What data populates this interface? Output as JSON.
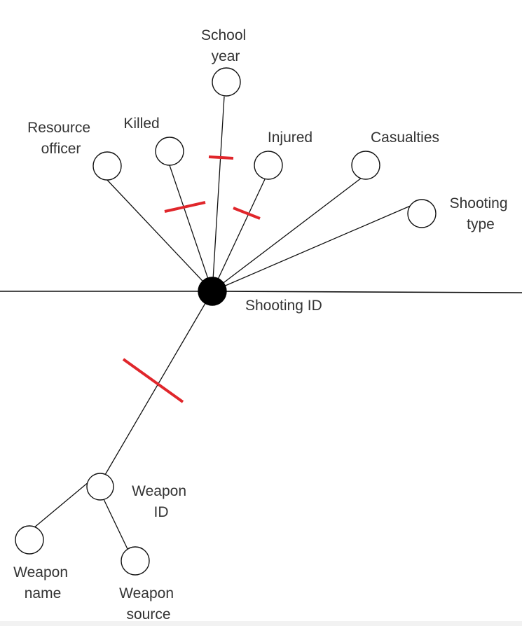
{
  "diagram": {
    "center": {
      "label": "Shooting ID"
    },
    "attributes": {
      "school_year": [
        "School",
        "year"
      ],
      "resource_officer": [
        "Resource",
        "officer"
      ],
      "killed": [
        "Killed"
      ],
      "injured": [
        "Injured"
      ],
      "casualties": [
        "Casualties"
      ],
      "shooting_type": [
        "Shooting",
        "type"
      ],
      "weapon_id": [
        "Weapon",
        "ID"
      ],
      "weapon_name": [
        "Weapon",
        "name"
      ],
      "weapon_source": [
        "Weapon",
        "source"
      ]
    },
    "colors": {
      "line": "#111111",
      "node_fill": "#ffffff",
      "key_node_fill": "#000000",
      "tick_mark": "#e0262b",
      "text": "#333333"
    }
  }
}
